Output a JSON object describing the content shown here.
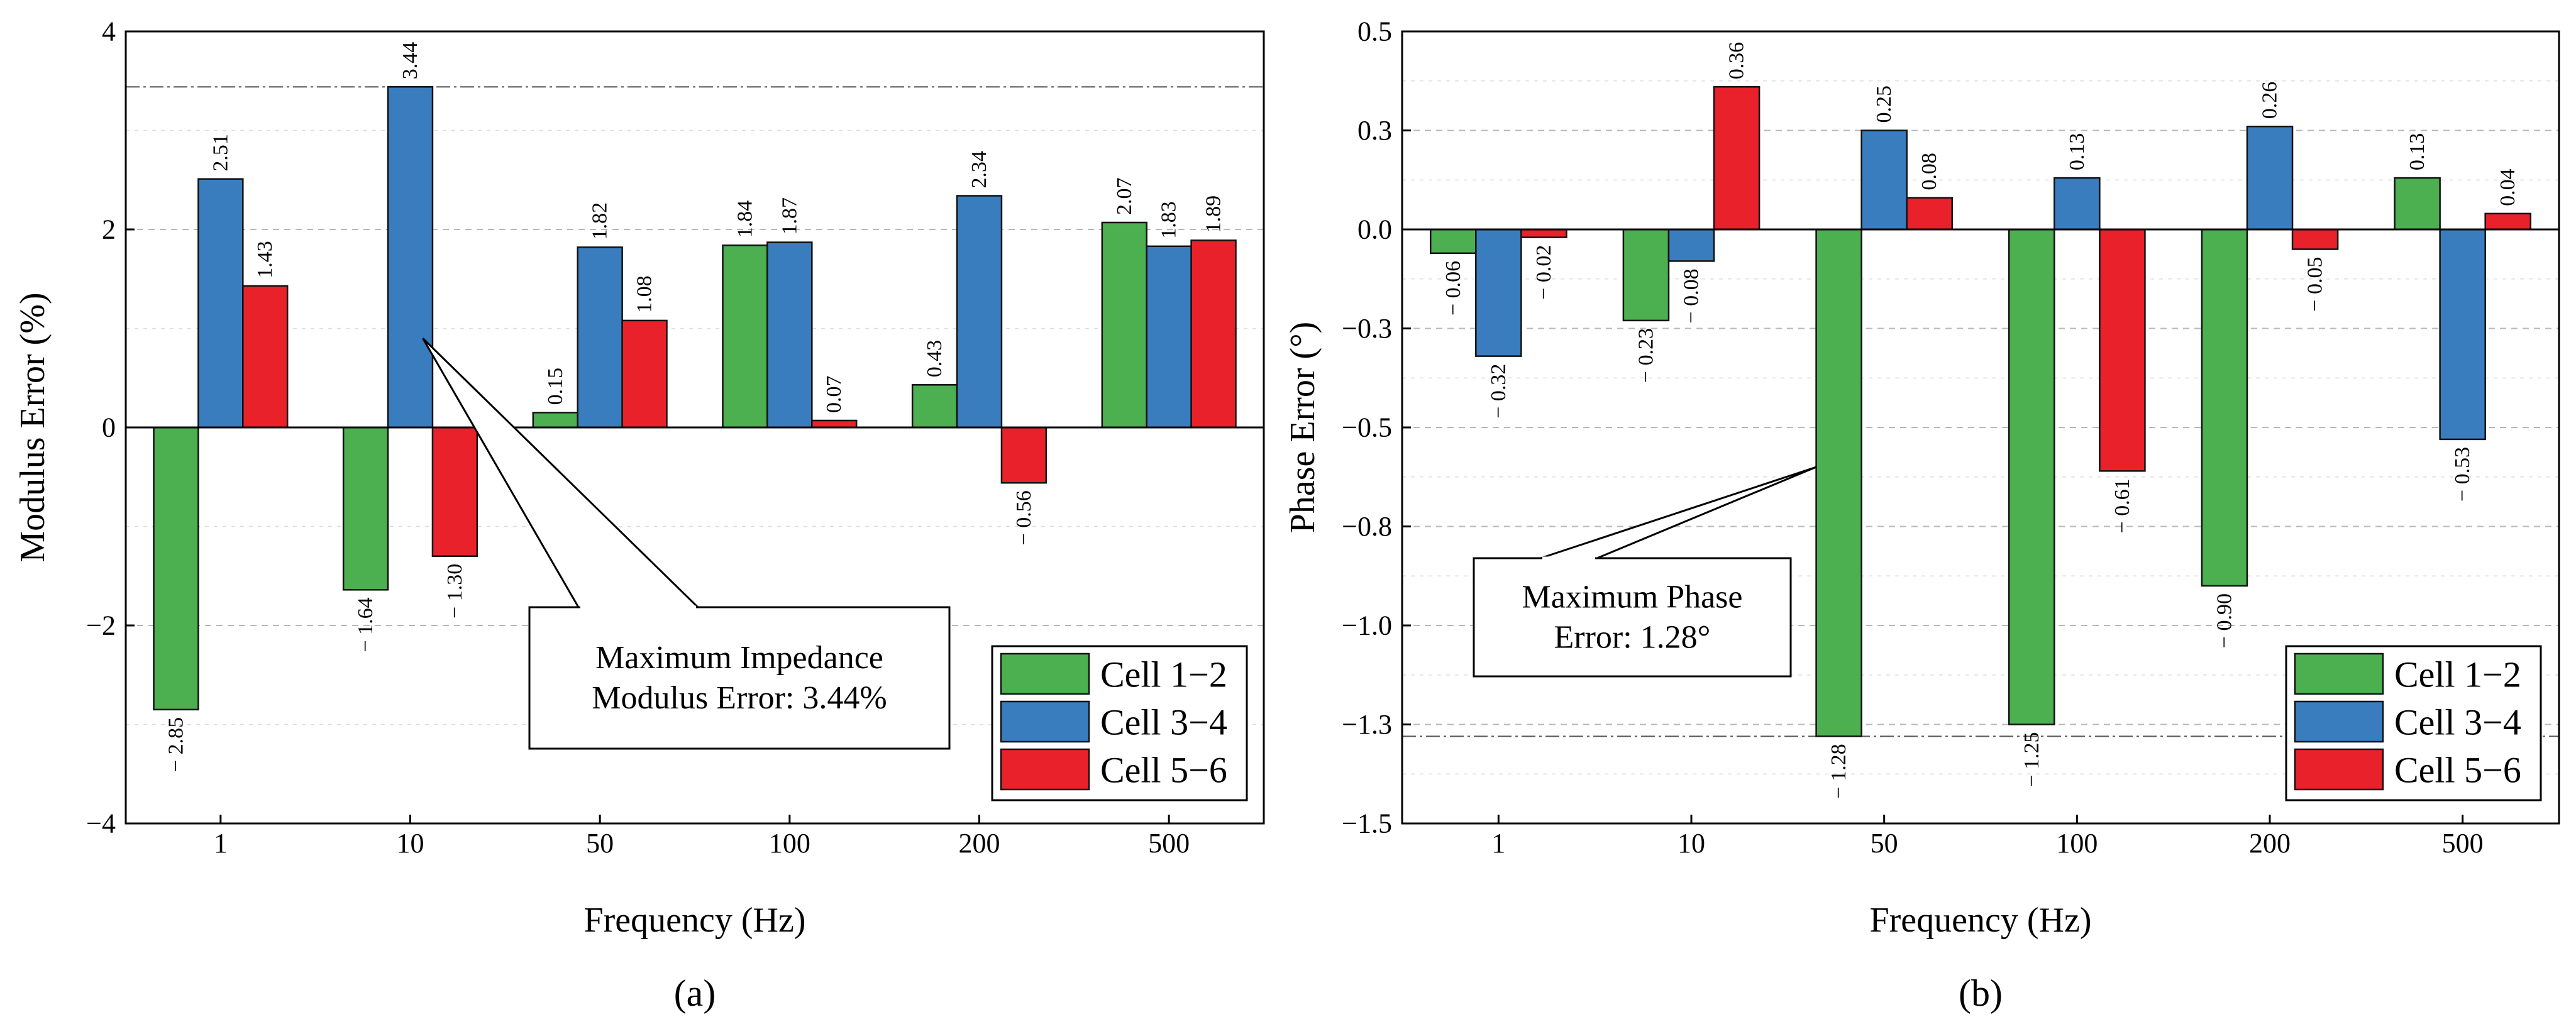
{
  "chart_data": [
    {
      "type": "bar",
      "id": "a",
      "subplot_label": "(a)",
      "xlabel": "Frequency (Hz)",
      "ylabel": "Modulus Error (%)",
      "categories": [
        "1",
        "10",
        "50",
        "100",
        "200",
        "500"
      ],
      "ylim": [
        -4,
        4
      ],
      "yticks": [
        -4,
        -2,
        0,
        2,
        4
      ],
      "ytick_labels": [
        "−4",
        "−2",
        "0",
        "2",
        "4"
      ],
      "grid": "dashed horizontal",
      "reference_line": 3.44,
      "series": [
        {
          "name": "Cell 1−2",
          "color": "#4caf50",
          "values": [
            -2.85,
            -1.64,
            0.15,
            1.84,
            0.43,
            2.07
          ],
          "labels": [
            "− 2.85",
            "− 1.64",
            "0.15",
            "1.84",
            "0.43",
            "2.07"
          ]
        },
        {
          "name": "Cell 3−4",
          "color": "#3a7dbf",
          "values": [
            2.51,
            3.44,
            1.82,
            1.87,
            2.34,
            1.83
          ],
          "labels": [
            "2.51",
            "3.44",
            "1.82",
            "1.87",
            "2.34",
            "1.83"
          ]
        },
        {
          "name": "Cell 5−6",
          "color": "#e8212a",
          "values": [
            1.43,
            -1.3,
            1.08,
            0.07,
            -0.56,
            1.89
          ],
          "labels": [
            "1.43",
            "− 1.30",
            "1.08",
            "0.07",
            "− 0.56",
            "1.89"
          ]
        }
      ],
      "annotation": {
        "lines": [
          "Maximum Impedance",
          "Modulus Error: 3.44%"
        ],
        "target_category": 1,
        "target_series": 1,
        "target_value": 0.9
      },
      "legend_position": "bottom-right"
    },
    {
      "type": "bar",
      "id": "b",
      "subplot_label": "(b)",
      "xlabel": "Frequency (Hz)",
      "ylabel": "Phase Error (°)",
      "categories": [
        "1",
        "10",
        "50",
        "100",
        "200",
        "500"
      ],
      "ylim": [
        -1.5,
        0.5
      ],
      "yticks": [
        -1.5,
        -1.25,
        -1.0,
        -0.75,
        -0.5,
        -0.25,
        0,
        0.25,
        0.5
      ],
      "ytick_labels": [
        "−1.5",
        "−1.3",
        "−1.0",
        "−0.8",
        "−0.5",
        "−0.3",
        "0.0",
        "0.3",
        "0.5"
      ],
      "grid": "dashed horizontal",
      "reference_line": -1.28,
      "series": [
        {
          "name": "Cell 1−2",
          "color": "#4caf50",
          "values": [
            -0.06,
            -0.23,
            -1.28,
            -1.25,
            -0.9,
            0.13
          ],
          "labels": [
            "− 0.06",
            "− 0.23",
            "− 1.28",
            "− 1.25",
            "− 0.90",
            "0.13"
          ]
        },
        {
          "name": "Cell 3−4",
          "color": "#3a7dbf",
          "values": [
            -0.32,
            -0.08,
            0.25,
            0.13,
            0.26,
            -0.53
          ],
          "labels": [
            "− 0.32",
            "− 0.08",
            "0.25",
            "0.13",
            "0.26",
            "− 0.53"
          ]
        },
        {
          "name": "Cell 5−6",
          "color": "#e8212a",
          "values": [
            -0.02,
            0.36,
            0.08,
            -0.61,
            -0.05,
            0.04
          ],
          "labels": [
            "− 0.02",
            "0.36",
            "0.08",
            "− 0.61",
            "− 0.05",
            "0.04"
          ]
        }
      ],
      "annotation": {
        "lines": [
          "Maximum Phase",
          "Error: 1.28°"
        ],
        "target_category": 2,
        "target_series": 0,
        "target_value": -0.6
      },
      "legend_position": "bottom-right"
    }
  ]
}
